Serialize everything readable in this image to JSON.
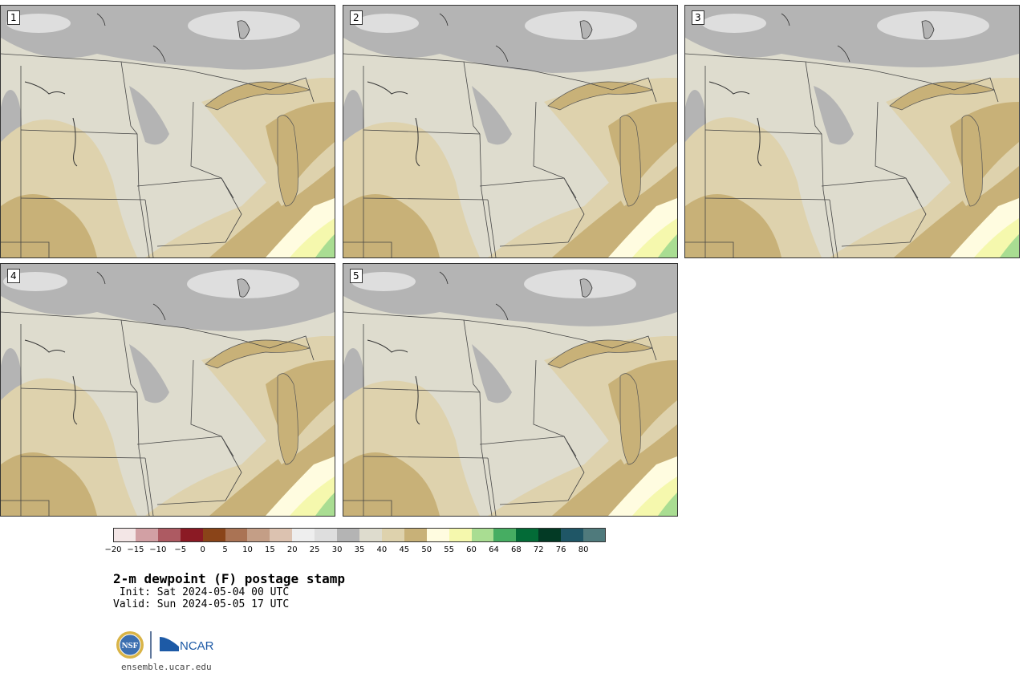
{
  "stamps": [
    {
      "label": "1"
    },
    {
      "label": "2"
    },
    {
      "label": "3"
    },
    {
      "label": "4"
    },
    {
      "label": "5"
    }
  ],
  "colorbar": {
    "colors": [
      "#f3e6e6",
      "#d2a0a4",
      "#ad5a62",
      "#8b1a24",
      "#8a4418",
      "#aa7354",
      "#c49e86",
      "#dcc2b0",
      "#eeeeee",
      "#dedede",
      "#b4b4b4",
      "#dedcce",
      "#ded2ad",
      "#c8b178",
      "#fffce0",
      "#f5f8ad",
      "#a9dd92",
      "#46ad62",
      "#036b37",
      "#033a25",
      "#1f5666",
      "#4f7a7c"
    ],
    "ticks": [
      "−20",
      "−15",
      "−10",
      "−5",
      "0",
      "5",
      "10",
      "15",
      "20",
      "25",
      "30",
      "35",
      "40",
      "45",
      "50",
      "55",
      "60",
      "64",
      "68",
      "72",
      "76",
      "80"
    ]
  },
  "title": "2-m dewpoint (F) postage stamp",
  "init": " Init: Sat 2024-05-04 00 UTC",
  "valid": "Valid: Sun 2024-05-05 17 UTC",
  "logos": {
    "nsf": "NSF",
    "ncar": "NCAR"
  },
  "site": "ensemble.ucar.edu"
}
